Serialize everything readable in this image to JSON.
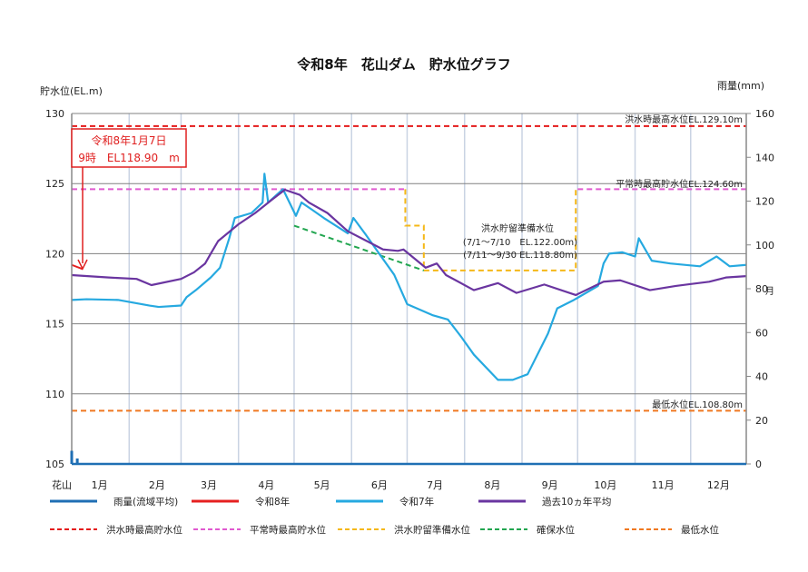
{
  "chart_data": {
    "type": "line",
    "title": "令和8年　花山ダム　貯水位グラフ",
    "ylabel_left": "貯水位(EL.m)",
    "ylabel_right": "雨量(mm)",
    "ylim_left": [
      105,
      130
    ],
    "ylim_right": [
      0,
      160
    ],
    "yticks_left": [
      "130",
      "125",
      "120",
      "115",
      "110",
      "105"
    ],
    "yticks_right": [
      "160",
      "140",
      "120",
      "100",
      "80",
      "60",
      "40",
      "20",
      "0"
    ],
    "right_stray_label": "月",
    "x_station_label": "花山",
    "xticks": [
      "1月",
      "2月",
      "3月",
      "4月",
      "5月",
      "6月",
      "7月",
      "8月",
      "9月",
      "10月",
      "11月",
      "12月"
    ],
    "grid": true,
    "colors": {
      "rain": "#1f6fb4",
      "r8": "#e62020",
      "r7": "#26a9e0",
      "avg10": "#6a35a0",
      "flood_max": "#e41a1a",
      "normal_max": "#e05ad0",
      "flood_prep": "#f5b818",
      "secured": "#22a650",
      "min": "#f07820",
      "grid": "#c9d3e3",
      "gridH": "#808080"
    },
    "series": [
      {
        "key": "r8",
        "name": "令和8年",
        "points": [
          [
            "01-01",
            119.2
          ],
          [
            "01-07",
            118.9
          ]
        ]
      },
      {
        "key": "r7",
        "name": "令和7年",
        "points": [
          [
            "01-01",
            116.7
          ],
          [
            "01-09",
            116.75
          ],
          [
            "01-26",
            116.7
          ],
          [
            "02-12",
            116.3
          ],
          [
            "02-17",
            116.2
          ],
          [
            "03-01",
            116.3
          ],
          [
            "03-04",
            116.9
          ],
          [
            "03-09",
            117.4
          ],
          [
            "03-17",
            118.3
          ],
          [
            "03-22",
            119.0
          ],
          [
            "03-27",
            121.1
          ],
          [
            "03-30",
            122.55
          ],
          [
            "04-08",
            122.9
          ],
          [
            "04-14",
            123.65
          ],
          [
            "04-15",
            125.7
          ],
          [
            "04-17",
            123.65
          ],
          [
            "04-25",
            124.6
          ],
          [
            "05-02",
            122.7
          ],
          [
            "05-05",
            123.65
          ],
          [
            "05-10",
            123.2
          ],
          [
            "05-17",
            122.55
          ],
          [
            "05-30",
            121.45
          ],
          [
            "06-02",
            122.55
          ],
          [
            "06-09",
            121.3
          ],
          [
            "06-17",
            119.8
          ],
          [
            "06-24",
            118.5
          ],
          [
            "07-01",
            116.4
          ],
          [
            "07-15",
            115.6
          ],
          [
            "07-23",
            115.3
          ],
          [
            "07-30",
            114.1
          ],
          [
            "08-06",
            112.8
          ],
          [
            "08-19",
            111.0
          ],
          [
            "08-27",
            111.0
          ],
          [
            "09-04",
            111.4
          ],
          [
            "09-15",
            114.3
          ],
          [
            "09-20",
            116.1
          ],
          [
            "09-29",
            116.7
          ],
          [
            "10-12",
            117.7
          ],
          [
            "10-15",
            119.3
          ],
          [
            "10-18",
            120.0
          ],
          [
            "10-25",
            120.1
          ],
          [
            "11-01",
            119.8
          ],
          [
            "11-03",
            121.1
          ],
          [
            "11-10",
            119.5
          ],
          [
            "11-20",
            119.3
          ],
          [
            "12-06",
            119.1
          ],
          [
            "12-15",
            119.8
          ],
          [
            "12-22",
            119.1
          ],
          [
            "12-31",
            119.2
          ]
        ]
      },
      {
        "key": "avg10",
        "name": "過去10ヵ年平均",
        "points": [
          [
            "01-01",
            118.47
          ],
          [
            "01-21",
            118.3
          ],
          [
            "02-05",
            118.2
          ],
          [
            "02-13",
            117.76
          ],
          [
            "03-01",
            118.2
          ],
          [
            "03-08",
            118.67
          ],
          [
            "03-14",
            119.3
          ],
          [
            "03-17",
            120.0
          ],
          [
            "03-21",
            120.9
          ],
          [
            "04-01",
            122.1
          ],
          [
            "04-10",
            122.9
          ],
          [
            "04-19",
            123.85
          ],
          [
            "04-26",
            124.56
          ],
          [
            "05-04",
            124.2
          ],
          [
            "05-09",
            123.65
          ],
          [
            "05-19",
            122.9
          ],
          [
            "05-30",
            121.6
          ],
          [
            "06-18",
            120.3
          ],
          [
            "06-26",
            120.2
          ],
          [
            "06-29",
            120.3
          ],
          [
            "07-11",
            119.0
          ],
          [
            "07-17",
            119.3
          ],
          [
            "07-22",
            118.47
          ],
          [
            "08-06",
            117.4
          ],
          [
            "08-19",
            117.9
          ],
          [
            "08-29",
            117.2
          ],
          [
            "09-13",
            117.8
          ],
          [
            "09-30",
            117.05
          ],
          [
            "10-15",
            118.0
          ],
          [
            "10-24",
            118.1
          ],
          [
            "11-09",
            117.4
          ],
          [
            "11-23",
            117.7
          ],
          [
            "12-11",
            118.0
          ],
          [
            "12-20",
            118.3
          ],
          [
            "12-31",
            118.4
          ]
        ]
      }
    ],
    "rain": {
      "name": "雨量(流域平均)",
      "bars": [
        [
          "01-01",
          6
        ],
        [
          "01-04",
          2.5
        ]
      ]
    },
    "reference_lines": [
      {
        "key": "flood_max",
        "name": "洪水時最高貯水位",
        "label": "洪水時最高水位EL.129.10m",
        "segments": [
          [
            [
              "01-01",
              129.1
            ],
            [
              "12-31",
              129.1
            ]
          ]
        ]
      },
      {
        "key": "normal_max",
        "name": "平常時最高貯水位",
        "label": "平常時最高貯水位EL.124.60m",
        "segments": [
          [
            [
              "01-01",
              124.6
            ],
            [
              "06-30",
              124.6
            ]
          ],
          [
            [
              "10-01",
              124.6
            ],
            [
              "12-31",
              124.6
            ]
          ]
        ]
      },
      {
        "key": "flood_prep",
        "name": "洪水貯留準備水位",
        "label": "",
        "segments": [
          [
            [
              "06-30",
              124.6
            ],
            [
              "06-30",
              122.0
            ],
            [
              "07-10",
              122.0
            ],
            [
              "07-10",
              118.8
            ],
            [
              "09-30",
              118.8
            ],
            [
              "09-30",
              124.6
            ]
          ]
        ]
      },
      {
        "key": "secured",
        "name": "確保水位",
        "label": "",
        "segments": [
          [
            [
              "05-01",
              122.0
            ],
            [
              "07-10",
              118.8
            ]
          ]
        ]
      },
      {
        "key": "min",
        "name": "最低水位",
        "label": "最低水位EL.108.80m",
        "segments": [
          [
            [
              "01-01",
              108.8
            ],
            [
              "12-31",
              108.8
            ]
          ]
        ]
      }
    ],
    "annotation_prep": [
      "洪水貯留準備水位",
      "(7/1～7/10　EL.122.00m)",
      "(7/11～9/30 EL.118.80m)"
    ],
    "callout": {
      "line1": "令和8年1月7日",
      "line2": "9時　EL118.90　m",
      "target": [
        "01-07",
        118.9
      ]
    },
    "legend": {
      "row1": [
        {
          "key": "rain",
          "label": "雨量(流域平均)"
        },
        {
          "key": "r8",
          "label": "令和8年"
        },
        {
          "key": "r7",
          "label": "令和7年"
        },
        {
          "key": "avg10",
          "label": "過去10ヵ年平均"
        }
      ],
      "row2": [
        {
          "key": "flood_max",
          "label": "洪水時最高貯水位"
        },
        {
          "key": "normal_max",
          "label": "平常時最高貯水位"
        },
        {
          "key": "flood_prep",
          "label": "洪水貯留準備水位"
        },
        {
          "key": "secured",
          "label": "確保水位"
        },
        {
          "key": "min",
          "label": "最低水位"
        }
      ]
    }
  }
}
